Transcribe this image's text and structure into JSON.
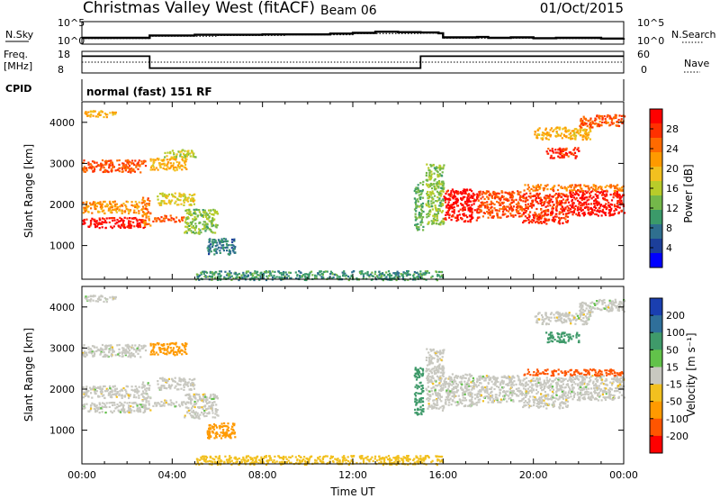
{
  "header": {
    "title": "Christmas Valley West (fitACF)",
    "beam": "Beam 06",
    "date": "01/Oct/2015"
  },
  "colors": {
    "axis": "#000000",
    "panel_bg": "#ffffff"
  },
  "chart_data": [
    {
      "type": "line",
      "panel": "noise",
      "left_label": "N.Sky",
      "right_label": "N.Search",
      "ticks_left": [
        "10^5",
        "10^0"
      ],
      "ticks_right": [
        "10^5",
        "10^0"
      ],
      "scale": "log",
      "ylim_exp": [
        0,
        5
      ],
      "series": [
        {
          "name": "N.Sky",
          "style": "solid",
          "x": [
            0,
            3,
            5,
            8,
            11,
            12,
            13,
            14,
            15,
            15.8,
            16,
            17.5,
            18,
            19,
            20,
            21,
            22,
            23,
            24
          ],
          "y": [
            1.2,
            1.8,
            2.0,
            2.1,
            2.3,
            2.5,
            2.8,
            2.7,
            2.6,
            2.4,
            1.3,
            1.4,
            1.2,
            1.3,
            1.1,
            1.2,
            1.2,
            1.0,
            1.1
          ]
        },
        {
          "name": "N.Search",
          "style": "dotted",
          "x": [
            0,
            3,
            6,
            9,
            12,
            15,
            16,
            18,
            20,
            22,
            24
          ],
          "y": [
            1.0,
            1.6,
            1.8,
            2.0,
            2.3,
            2.4,
            1.1,
            1.1,
            1.0,
            1.0,
            1.0
          ]
        }
      ]
    },
    {
      "type": "line",
      "panel": "frequency",
      "left_label": "Freq.",
      "left_unit": "[MHz]",
      "right_label": "Nave",
      "ticks_left": [
        "18",
        "8"
      ],
      "ticks_right": [
        "60",
        "0"
      ],
      "ylim": [
        8,
        18
      ],
      "series": [
        {
          "name": "Freq.",
          "style": "solid",
          "x": [
            0,
            3,
            3,
            15,
            15,
            24
          ],
          "y": [
            16,
            16,
            10,
            10,
            16,
            16
          ]
        },
        {
          "name": "Nave",
          "style": "dotted",
          "x": [
            0,
            24
          ],
          "y": [
            13,
            13
          ]
        }
      ]
    },
    {
      "type": "heatmap",
      "panel": "cpid",
      "left_label": "CPID",
      "mode_text": "normal (fast) 151 RF"
    },
    {
      "type": "heatmap",
      "panel": "power",
      "xlabel": "",
      "ylabel": "Slant Range [km]",
      "yticks": [
        "1000",
        "2000",
        "3000",
        "4000"
      ],
      "ylim": [
        180,
        4500
      ],
      "xlim": [
        0,
        24
      ],
      "colorbar": {
        "label": "Power [dB]",
        "ticks": [
          "4",
          "8",
          "12",
          "16",
          "20",
          "24",
          "28"
        ],
        "range": [
          0,
          32
        ],
        "colors": [
          "#0000ff",
          "#1c3f9a",
          "#2f6f8f",
          "#3b9a6a",
          "#74b84a",
          "#b8cc2a",
          "#f2c01f",
          "#ff9a00",
          "#ff6a00",
          "#ff3000",
          "#ff0000"
        ]
      },
      "regions": [
        {
          "t": [
            0.0,
            2.8
          ],
          "r": [
            2800,
            3100
          ],
          "v": 26
        },
        {
          "t": [
            0.0,
            2.8
          ],
          "r": [
            1450,
            1700
          ],
          "v": 30
        },
        {
          "t": [
            0.0,
            2.5
          ],
          "r": [
            1800,
            2100
          ],
          "v": 22
        },
        {
          "t": [
            0.0,
            1.5
          ],
          "r": [
            4150,
            4300
          ],
          "v": 20
        },
        {
          "t": [
            2.6,
            3.0
          ],
          "r": [
            1500,
            2200
          ],
          "v": 24
        },
        {
          "t": [
            3.1,
            4.5
          ],
          "r": [
            1600,
            1750
          ],
          "v": 26
        },
        {
          "t": [
            3.3,
            5.0
          ],
          "r": [
            2000,
            2300
          ],
          "v": 18
        },
        {
          "t": [
            3.0,
            4.6
          ],
          "r": [
            2850,
            3150
          ],
          "v": 20
        },
        {
          "t": [
            3.6,
            5.0
          ],
          "r": [
            3150,
            3350
          ],
          "v": 16
        },
        {
          "t": [
            4.5,
            6.0
          ],
          "r": [
            1300,
            1900
          ],
          "v": 14
        },
        {
          "t": [
            5.5,
            6.8
          ],
          "r": [
            800,
            1200
          ],
          "v": 8
        },
        {
          "t": [
            14.7,
            15.1
          ],
          "r": [
            1400,
            2600
          ],
          "v": 12
        },
        {
          "t": [
            15.2,
            16.0
          ],
          "r": [
            1500,
            3000
          ],
          "v": 14
        },
        {
          "t": [
            16.0,
            17.5
          ],
          "r": [
            1600,
            2400
          ],
          "v": 30
        },
        {
          "t": [
            17.5,
            19.5
          ],
          "r": [
            1700,
            2350
          ],
          "v": 26
        },
        {
          "t": [
            19.5,
            21.5
          ],
          "r": [
            1550,
            2300
          ],
          "v": 28
        },
        {
          "t": [
            21.5,
            24.0
          ],
          "r": [
            1750,
            2350
          ],
          "v": 30
        },
        {
          "t": [
            19.5,
            24.0
          ],
          "r": [
            2350,
            2500
          ],
          "v": 24
        },
        {
          "t": [
            20.5,
            22.0
          ],
          "r": [
            3150,
            3400
          ],
          "v": 28
        },
        {
          "t": [
            20.0,
            22.5
          ],
          "r": [
            3600,
            3900
          ],
          "v": 20
        },
        {
          "t": [
            22.0,
            24.0
          ],
          "r": [
            3900,
            4200
          ],
          "v": 26
        },
        {
          "t": [
            5.0,
            16.0
          ],
          "r": [
            180,
            400
          ],
          "v": 10
        }
      ]
    },
    {
      "type": "heatmap",
      "panel": "velocity",
      "xlabel": "Time UT",
      "ylabel": "Slant Range [km]",
      "xticks": [
        "00:00",
        "04:00",
        "08:00",
        "12:00",
        "16:00",
        "20:00",
        "00:00"
      ],
      "yticks": [
        "1000",
        "2000",
        "3000",
        "4000"
      ],
      "ylim": [
        180,
        4500
      ],
      "xlim": [
        0,
        24
      ],
      "colorbar": {
        "label": "Velocity [m s⁻¹]",
        "ticks": [
          "200",
          "100",
          "50",
          "15",
          "-15",
          "-50",
          "-100",
          "-200"
        ],
        "colors": [
          "#1a3fb0",
          "#2f6f9a",
          "#3f9a6a",
          "#62c24a",
          "#c8c8c0",
          "#f2c01f",
          "#ff9a00",
          "#ff5500",
          "#ff0000"
        ]
      },
      "regions": [
        {
          "t": [
            0.0,
            2.8
          ],
          "r": [
            2800,
            3100
          ],
          "v": 0
        },
        {
          "t": [
            0.0,
            2.8
          ],
          "r": [
            1450,
            1700
          ],
          "v": 0
        },
        {
          "t": [
            0.0,
            2.5
          ],
          "r": [
            1800,
            2100
          ],
          "v": 0
        },
        {
          "t": [
            0.0,
            1.5
          ],
          "r": [
            4150,
            4300
          ],
          "v": 0
        },
        {
          "t": [
            2.6,
            3.0
          ],
          "r": [
            1500,
            2200
          ],
          "v": 0
        },
        {
          "t": [
            3.1,
            4.5
          ],
          "r": [
            1600,
            1750
          ],
          "v": 0
        },
        {
          "t": [
            3.3,
            5.0
          ],
          "r": [
            2000,
            2300
          ],
          "v": 0
        },
        {
          "t": [
            3.0,
            4.6
          ],
          "r": [
            2850,
            3150
          ],
          "v": -40
        },
        {
          "t": [
            4.5,
            6.0
          ],
          "r": [
            1300,
            1900
          ],
          "v": 0
        },
        {
          "t": [
            5.5,
            6.8
          ],
          "r": [
            800,
            1200
          ],
          "v": -60
        },
        {
          "t": [
            14.7,
            15.1
          ],
          "r": [
            1400,
            2600
          ],
          "v": 40
        },
        {
          "t": [
            15.2,
            16.0
          ],
          "r": [
            1500,
            3000
          ],
          "v": 0
        },
        {
          "t": [
            16.0,
            17.5
          ],
          "r": [
            1600,
            2400
          ],
          "v": 0
        },
        {
          "t": [
            17.5,
            19.5
          ],
          "r": [
            1700,
            2350
          ],
          "v": 0
        },
        {
          "t": [
            19.5,
            21.5
          ],
          "r": [
            1550,
            2300
          ],
          "v": 0
        },
        {
          "t": [
            21.5,
            24.0
          ],
          "r": [
            1750,
            2350
          ],
          "v": 0
        },
        {
          "t": [
            19.5,
            24.0
          ],
          "r": [
            2350,
            2500
          ],
          "v": -120
        },
        {
          "t": [
            20.5,
            22.0
          ],
          "r": [
            3150,
            3400
          ],
          "v": 40
        },
        {
          "t": [
            20.0,
            22.5
          ],
          "r": [
            3600,
            3900
          ],
          "v": 0
        },
        {
          "t": [
            22.0,
            24.0
          ],
          "r": [
            3900,
            4200
          ],
          "v": 0
        },
        {
          "t": [
            5.0,
            16.0
          ],
          "r": [
            180,
            400
          ],
          "v": -30
        }
      ]
    }
  ]
}
